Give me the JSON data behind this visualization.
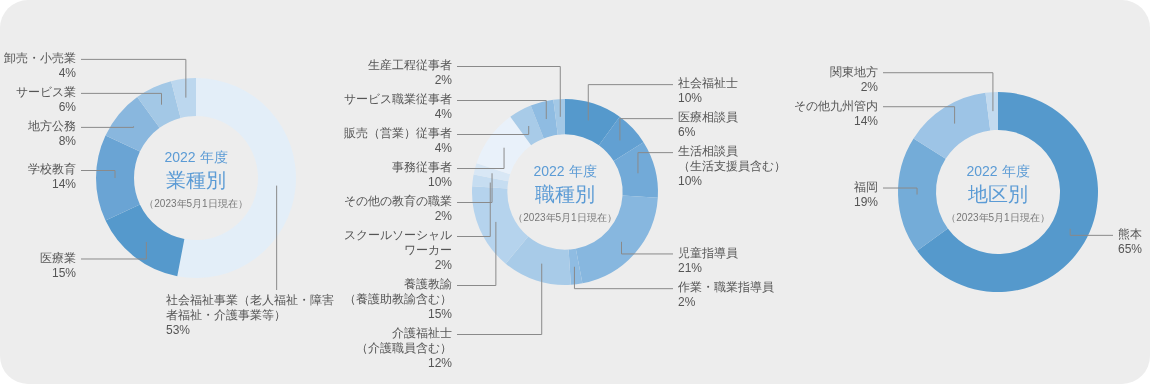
{
  "chart_data": [
    {
      "type": "donut",
      "title": "2022 年度",
      "subtitle": "業種別",
      "annotations": [
        "（2023年5月1日現在）"
      ],
      "categories": [
        "社会福祉事業（老人福祉・障害者福祉・介護事業等）",
        "医療業",
        "学校教育",
        "地方公務",
        "サービス業",
        "卸売・小売業"
      ],
      "values": [
        53,
        15,
        14,
        8,
        6,
        4
      ],
      "value_labels": [
        "53%",
        "15%",
        "14%",
        "8%",
        "6%",
        "4%"
      ],
      "colors": [
        "#e3eef8",
        "#5599cc",
        "#6aa4d4",
        "#89b7de",
        "#a3c8e6",
        "#bcd7ee"
      ]
    },
    {
      "type": "donut",
      "title": "2022 年度",
      "subtitle": "職種別",
      "annotations": [
        "（2023年5月1日現在）"
      ],
      "categories": [
        "社会福祉士",
        "医療相談員",
        "生活相談員（生活支援員含む）",
        "児童指導員",
        "作業・職業指導員",
        "介護福祉士（介護職員含む）",
        "養護教諭（養護助教諭含む）",
        "スクールソーシャルワーカー",
        "その他の教育の職業",
        "事務従事者",
        "販売（営業）従事者",
        "サービス職業従事者",
        "生産工程従事者"
      ],
      "values": [
        10,
        6,
        10,
        21,
        2,
        12,
        15,
        2,
        2,
        10,
        4,
        4,
        2
      ],
      "value_labels": [
        "10%",
        "6%",
        "10%",
        "21%",
        "2%",
        "12%",
        "15%",
        "2%",
        "2%",
        "10%",
        "4%",
        "4%",
        "2%"
      ],
      "colors": [
        "#5599cc",
        "#62a0d2",
        "#72aad8",
        "#87b7df",
        "#8fbce2",
        "#a8cbe8",
        "#b5d3ed",
        "#c6ddf1",
        "#d8e7f5",
        "#e9f1fa",
        "#a8cbe8",
        "#8fbce2",
        "#a3c8e6"
      ]
    },
    {
      "type": "donut",
      "title": "2022 年度",
      "subtitle": "地区別",
      "annotations": [
        "（2023年5月1日現在）"
      ],
      "categories": [
        "熊本",
        "福岡",
        "その他九州管内",
        "関東地方"
      ],
      "values": [
        65,
        19,
        14,
        2
      ],
      "value_labels": [
        "65%",
        "19%",
        "14%",
        "2%"
      ],
      "colors": [
        "#5599cc",
        "#74acd8",
        "#9dc4e6",
        "#c2daef"
      ]
    }
  ]
}
